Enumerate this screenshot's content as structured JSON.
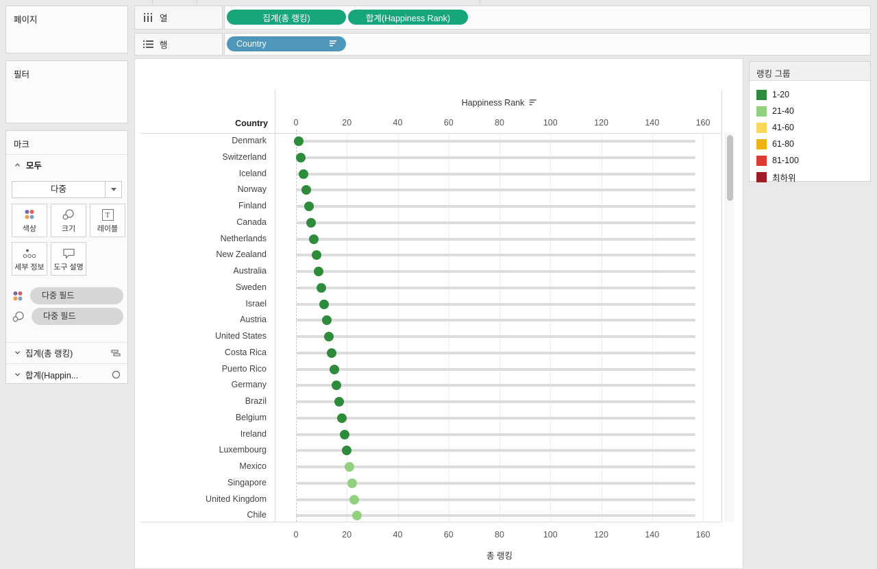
{
  "panels": {
    "pages": {
      "title": "페이지"
    },
    "filters": {
      "title": "필터"
    },
    "marks": {
      "title": "마크",
      "section_label": "모두",
      "mark_type": "다중",
      "buttons": [
        {
          "label": "색상"
        },
        {
          "label": "크기"
        },
        {
          "label": "레이블",
          "icon_letter": "T"
        },
        {
          "label": "세부 정보"
        },
        {
          "label": "도구 설명"
        }
      ],
      "field_pills": [
        {
          "label": "다중 필드"
        },
        {
          "label": "다중 필드"
        }
      ],
      "expand_rows": [
        {
          "label": "집계(총 랭킹)"
        },
        {
          "label": "합계(Happin..."
        }
      ]
    }
  },
  "shelves": {
    "columns_label": "열",
    "rows_label": "행",
    "column_pills": [
      {
        "label": "집계(총 랭킹)"
      },
      {
        "label": "합계(Happiness Rank)"
      }
    ],
    "row_pill": {
      "label": "Country"
    },
    "pill_green": "#17a67b",
    "pill_blue": "#4e97ba"
  },
  "legend": {
    "title": "랭킹 그룹",
    "items": [
      {
        "label": "1-20",
        "color": "#2e8b3c"
      },
      {
        "label": "21-40",
        "color": "#90d07e"
      },
      {
        "label": "41-60",
        "color": "#fbd65c"
      },
      {
        "label": "61-80",
        "color": "#eeb211"
      },
      {
        "label": "81-100",
        "color": "#dd3a33"
      },
      {
        "label": "최하위",
        "color": "#a01d26"
      }
    ]
  },
  "chart_data": {
    "type": "scatter",
    "title": "Happiness Rank",
    "row_header": "Country",
    "top_axis": {
      "label": "Happiness Rank",
      "min": 0,
      "max": 160,
      "ticks": [
        0,
        20,
        40,
        60,
        80,
        100,
        120,
        140,
        160
      ]
    },
    "bottom_axis": {
      "label": "총 랭킹",
      "min": 0,
      "max": 160,
      "ticks": [
        0,
        20,
        40,
        60,
        80,
        100,
        120,
        140,
        160
      ]
    },
    "bar_series": {
      "name": "집계(총 랭킹)",
      "color": "#dcdcdc"
    },
    "dot_series": {
      "name": "합계(Happiness Rank)"
    },
    "rows": [
      {
        "name": "Denmark",
        "happiness_rank": 1,
        "total_rank": 157,
        "group": "1-20"
      },
      {
        "name": "Switzerland",
        "happiness_rank": 2,
        "total_rank": 157,
        "group": "1-20"
      },
      {
        "name": "Iceland",
        "happiness_rank": 3,
        "total_rank": 157,
        "group": "1-20"
      },
      {
        "name": "Norway",
        "happiness_rank": 4,
        "total_rank": 157,
        "group": "1-20"
      },
      {
        "name": "Finland",
        "happiness_rank": 5,
        "total_rank": 157,
        "group": "1-20"
      },
      {
        "name": "Canada",
        "happiness_rank": 6,
        "total_rank": 157,
        "group": "1-20"
      },
      {
        "name": "Netherlands",
        "happiness_rank": 7,
        "total_rank": 157,
        "group": "1-20"
      },
      {
        "name": "New Zealand",
        "happiness_rank": 8,
        "total_rank": 157,
        "group": "1-20"
      },
      {
        "name": "Australia",
        "happiness_rank": 9,
        "total_rank": 157,
        "group": "1-20"
      },
      {
        "name": "Sweden",
        "happiness_rank": 10,
        "total_rank": 157,
        "group": "1-20"
      },
      {
        "name": "Israel",
        "happiness_rank": 11,
        "total_rank": 157,
        "group": "1-20"
      },
      {
        "name": "Austria",
        "happiness_rank": 12,
        "total_rank": 157,
        "group": "1-20"
      },
      {
        "name": "United States",
        "happiness_rank": 13,
        "total_rank": 157,
        "group": "1-20"
      },
      {
        "name": "Costa Rica",
        "happiness_rank": 14,
        "total_rank": 157,
        "group": "1-20"
      },
      {
        "name": "Puerto Rico",
        "happiness_rank": 15,
        "total_rank": 157,
        "group": "1-20"
      },
      {
        "name": "Germany",
        "happiness_rank": 16,
        "total_rank": 157,
        "group": "1-20"
      },
      {
        "name": "Brazil",
        "happiness_rank": 17,
        "total_rank": 157,
        "group": "1-20"
      },
      {
        "name": "Belgium",
        "happiness_rank": 18,
        "total_rank": 157,
        "group": "1-20"
      },
      {
        "name": "Ireland",
        "happiness_rank": 19,
        "total_rank": 157,
        "group": "1-20"
      },
      {
        "name": "Luxembourg",
        "happiness_rank": 20,
        "total_rank": 157,
        "group": "1-20"
      },
      {
        "name": "Mexico",
        "happiness_rank": 21,
        "total_rank": 157,
        "group": "21-40"
      },
      {
        "name": "Singapore",
        "happiness_rank": 22,
        "total_rank": 157,
        "group": "21-40"
      },
      {
        "name": "United Kingdom",
        "happiness_rank": 23,
        "total_rank": 157,
        "group": "21-40"
      },
      {
        "name": "Chile",
        "happiness_rank": 24,
        "total_rank": 157,
        "group": "21-40"
      }
    ]
  }
}
